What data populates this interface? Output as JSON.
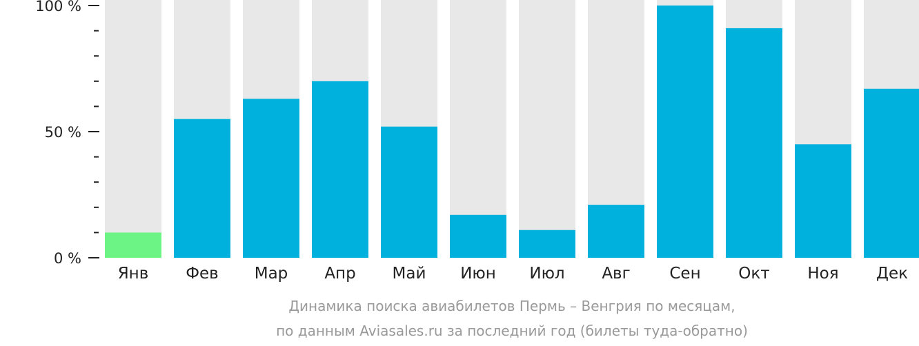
{
  "chart_data": {
    "type": "bar",
    "categories": [
      "Янв",
      "Фев",
      "Мар",
      "Апр",
      "Май",
      "Июн",
      "Июл",
      "Авг",
      "Сен",
      "Окт",
      "Ноя",
      "Дек"
    ],
    "values": [
      10,
      55,
      63,
      70,
      52,
      17,
      11,
      21,
      100,
      91,
      45,
      67
    ],
    "ylim": [
      0,
      100
    ],
    "yticks": [
      {
        "value": 0,
        "label": "0 %"
      },
      {
        "value": 50,
        "label": "50 %"
      },
      {
        "value": 100,
        "label": "100 %"
      }
    ],
    "minor_tick_step": 10,
    "highlight_index": 0,
    "colors": {
      "bar": "#00b0dd",
      "highlight": "#6cf484",
      "background_bar": "#e8e8e8",
      "axis": "#222222"
    },
    "caption": [
      "Динамика поиска авиабилетов Пермь – Венгрия по месяцам,",
      "по данным Aviasales.ru за последний год (билеты туда-обратно)"
    ]
  }
}
